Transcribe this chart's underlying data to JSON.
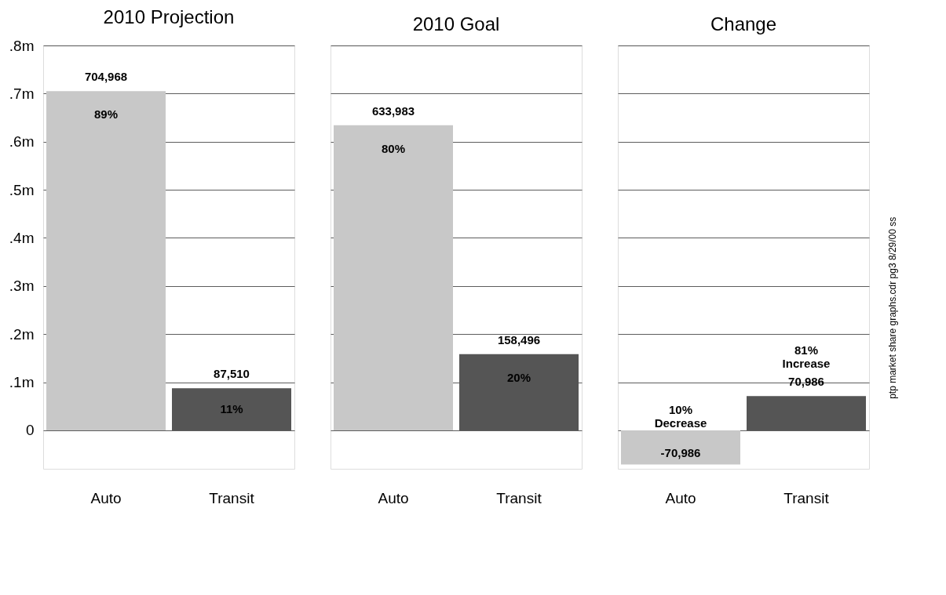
{
  "chart_data": [
    {
      "type": "bar",
      "title": "2010 Projection",
      "categories": [
        "Auto",
        "Transit"
      ],
      "colors": [
        "#c8c8c8",
        "#555555"
      ],
      "values": [
        704968,
        87510
      ],
      "value_labels": [
        "704,968",
        "87,510"
      ],
      "ylim": [
        -80000,
        800000
      ],
      "yticks": [
        0,
        {
          "value": 100000,
          "label": ".1m"
        },
        {
          "value": 200000,
          "label": ".2m"
        },
        {
          "value": 300000,
          "label": ".3m"
        },
        {
          "value": 400000,
          "label": ".4m"
        },
        {
          "value": 500000,
          "label": ".5m"
        },
        {
          "value": 600000,
          "label": ".6m"
        },
        {
          "value": 700000,
          "label": ".7m"
        },
        {
          "value": 800000,
          "label": ".8m"
        }
      ],
      "grid": "y",
      "annotations": [
        "89%",
        "11%"
      ]
    },
    {
      "type": "bar",
      "title": "2010 Goal",
      "categories": [
        "Auto",
        "Transit"
      ],
      "colors": [
        "#c8c8c8",
        "#555555"
      ],
      "values": [
        633983,
        158496
      ],
      "value_labels": [
        "633,983",
        "158,496"
      ],
      "ylim": [
        -80000,
        800000
      ],
      "yticks": [
        {
          "value": 0,
          "label": null
        },
        {
          "value": 100000,
          "label": null
        },
        {
          "value": 200000,
          "label": null
        },
        {
          "value": 300000,
          "label": null
        },
        {
          "value": 400000,
          "label": null
        },
        {
          "value": 500000,
          "label": null
        },
        {
          "value": 600000,
          "label": null
        },
        {
          "value": 700000,
          "label": null
        },
        {
          "value": 800000,
          "label": null
        }
      ],
      "grid": "y",
      "tick_labels": "x",
      "annotations": [
        "80%",
        "20%"
      ]
    },
    {
      "type": "bar",
      "title": "Change",
      "categories": [
        "Auto",
        "Transit"
      ],
      "colors": [
        "#c8c8c8",
        "#555555"
      ],
      "values": [
        -70986,
        70986
      ],
      "value_labels": [
        "-70,986",
        "70,986"
      ],
      "ylim": [
        -80000,
        800000
      ],
      "yticks": [
        {
          "value": 0,
          "label": null
        },
        {
          "value": 100000,
          "label": null
        },
        {
          "value": 200000,
          "label": null
        },
        {
          "value": 300000,
          "label": null
        },
        {
          "value": 400000,
          "label": null
        },
        {
          "value": 500000,
          "label": null
        },
        {
          "value": 600000,
          "label": null
        },
        {
          "value": 700000,
          "label": null
        },
        {
          "value": 800000,
          "label": null
        }
      ],
      "grid": "y",
      "tick_labels": "x",
      "annotations": [
        "10% Decrease",
        "81% Increase",
        "ptp market share graphs.cdr pg3 8/29/00 ss"
      ]
    }
  ]
}
